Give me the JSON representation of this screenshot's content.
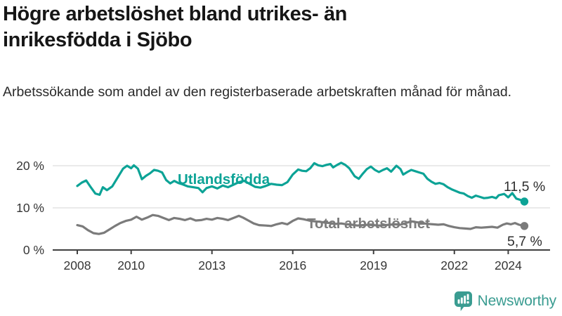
{
  "header": {
    "title": "Högre arbetslöshet bland utrikes- än inrikesfödda i Sjöbo",
    "subtitle": "Arbetssökande som andel av den registerbaserade arbetskraften månad för månad."
  },
  "chart_data": {
    "type": "line",
    "title": "",
    "xlabel": "",
    "ylabel": "",
    "ylim": [
      0,
      22
    ],
    "xlim": [
      2007.1,
      2025.55
    ],
    "grid": "horizontal-light",
    "legend_position": "inline-labels-on-lines",
    "axis_color": "#3f3f3f",
    "gridline_color": "#e3e3e3",
    "tick_label_color": "#363636",
    "value_label_color": "#2e2e2e",
    "y_ticks": [
      {
        "value": 0,
        "label": "0 %"
      },
      {
        "value": 10,
        "label": "10 %"
      },
      {
        "value": 20,
        "label": "20 %"
      }
    ],
    "x_ticks": [
      {
        "value": 2008,
        "label": "2008"
      },
      {
        "value": 2010,
        "label": "2010"
      },
      {
        "value": 2013,
        "label": "2013"
      },
      {
        "value": 2016,
        "label": "2016"
      },
      {
        "value": 2019,
        "label": "2019"
      },
      {
        "value": 2022,
        "label": "2022"
      },
      {
        "value": 2024,
        "label": "2024"
      }
    ],
    "series": [
      {
        "name": "Utlandsfödda",
        "color": "#0ca396",
        "end_value": 11.5,
        "end_label": "11,5 %",
        "points": [
          [
            2008.0,
            15.2
          ],
          [
            2008.17,
            16.0
          ],
          [
            2008.33,
            16.5
          ],
          [
            2008.5,
            14.9
          ],
          [
            2008.67,
            13.4
          ],
          [
            2008.83,
            13.1
          ],
          [
            2008.95,
            14.9
          ],
          [
            2009.1,
            14.2
          ],
          [
            2009.3,
            15.1
          ],
          [
            2009.5,
            17.2
          ],
          [
            2009.7,
            19.3
          ],
          [
            2009.85,
            20.0
          ],
          [
            2010.0,
            19.4
          ],
          [
            2010.1,
            20.1
          ],
          [
            2010.25,
            19.3
          ],
          [
            2010.4,
            16.8
          ],
          [
            2010.55,
            17.6
          ],
          [
            2010.7,
            18.2
          ],
          [
            2010.85,
            19.0
          ],
          [
            2011.0,
            18.8
          ],
          [
            2011.15,
            18.4
          ],
          [
            2011.3,
            16.6
          ],
          [
            2011.45,
            15.8
          ],
          [
            2011.6,
            16.4
          ],
          [
            2011.75,
            15.9
          ],
          [
            2011.9,
            15.6
          ],
          [
            2012.1,
            15.1
          ],
          [
            2012.3,
            14.9
          ],
          [
            2012.5,
            14.7
          ],
          [
            2012.65,
            13.7
          ],
          [
            2012.8,
            14.7
          ],
          [
            2013.0,
            15.1
          ],
          [
            2013.2,
            14.6
          ],
          [
            2013.4,
            15.3
          ],
          [
            2013.6,
            14.9
          ],
          [
            2013.8,
            15.5
          ],
          [
            2014.0,
            16.1
          ],
          [
            2014.2,
            16.4
          ],
          [
            2014.4,
            15.7
          ],
          [
            2014.6,
            15.0
          ],
          [
            2014.8,
            14.8
          ],
          [
            2015.0,
            15.2
          ],
          [
            2015.2,
            15.7
          ],
          [
            2015.4,
            15.5
          ],
          [
            2015.6,
            15.4
          ],
          [
            2015.8,
            16.1
          ],
          [
            2016.0,
            17.9
          ],
          [
            2016.2,
            19.1
          ],
          [
            2016.35,
            18.8
          ],
          [
            2016.5,
            18.7
          ],
          [
            2016.65,
            19.4
          ],
          [
            2016.8,
            20.6
          ],
          [
            2016.95,
            20.1
          ],
          [
            2017.1,
            19.9
          ],
          [
            2017.25,
            20.2
          ],
          [
            2017.4,
            20.4
          ],
          [
            2017.5,
            19.6
          ],
          [
            2017.65,
            20.2
          ],
          [
            2017.8,
            20.7
          ],
          [
            2017.95,
            20.2
          ],
          [
            2018.1,
            19.4
          ],
          [
            2018.3,
            17.5
          ],
          [
            2018.45,
            16.9
          ],
          [
            2018.6,
            18.1
          ],
          [
            2018.75,
            19.2
          ],
          [
            2018.9,
            19.8
          ],
          [
            2019.05,
            19.0
          ],
          [
            2019.2,
            18.5
          ],
          [
            2019.35,
            19.0
          ],
          [
            2019.5,
            19.4
          ],
          [
            2019.65,
            18.6
          ],
          [
            2019.85,
            20.0
          ],
          [
            2020.0,
            19.2
          ],
          [
            2020.1,
            17.9
          ],
          [
            2020.25,
            18.5
          ],
          [
            2020.4,
            19.0
          ],
          [
            2020.55,
            18.7
          ],
          [
            2020.7,
            18.4
          ],
          [
            2020.85,
            18.1
          ],
          [
            2021.0,
            16.9
          ],
          [
            2021.15,
            16.2
          ],
          [
            2021.3,
            15.7
          ],
          [
            2021.45,
            15.9
          ],
          [
            2021.6,
            15.6
          ],
          [
            2021.75,
            14.9
          ],
          [
            2021.9,
            14.4
          ],
          [
            2022.05,
            14.0
          ],
          [
            2022.2,
            13.6
          ],
          [
            2022.35,
            13.4
          ],
          [
            2022.5,
            12.8
          ],
          [
            2022.65,
            12.4
          ],
          [
            2022.8,
            12.9
          ],
          [
            2022.95,
            12.6
          ],
          [
            2023.1,
            12.3
          ],
          [
            2023.25,
            12.4
          ],
          [
            2023.4,
            12.6
          ],
          [
            2023.55,
            12.3
          ],
          [
            2023.65,
            13.0
          ],
          [
            2023.85,
            13.3
          ],
          [
            2024.0,
            12.5
          ],
          [
            2024.15,
            13.5
          ],
          [
            2024.3,
            12.2
          ],
          [
            2024.45,
            11.9
          ],
          [
            2024.6,
            11.5
          ]
        ]
      },
      {
        "name": "Total arbetslöshet",
        "color": "#7b7b7b",
        "end_value": 5.7,
        "end_label": "5,7 %",
        "points": [
          [
            2008.0,
            5.9
          ],
          [
            2008.2,
            5.6
          ],
          [
            2008.4,
            4.7
          ],
          [
            2008.6,
            4.0
          ],
          [
            2008.8,
            3.8
          ],
          [
            2009.0,
            4.1
          ],
          [
            2009.2,
            4.9
          ],
          [
            2009.4,
            5.7
          ],
          [
            2009.6,
            6.4
          ],
          [
            2009.8,
            6.9
          ],
          [
            2010.0,
            7.2
          ],
          [
            2010.2,
            7.9
          ],
          [
            2010.4,
            7.2
          ],
          [
            2010.6,
            7.7
          ],
          [
            2010.8,
            8.3
          ],
          [
            2011.0,
            8.1
          ],
          [
            2011.2,
            7.6
          ],
          [
            2011.4,
            7.1
          ],
          [
            2011.6,
            7.6
          ],
          [
            2011.8,
            7.4
          ],
          [
            2012.0,
            7.1
          ],
          [
            2012.2,
            7.5
          ],
          [
            2012.4,
            7.0
          ],
          [
            2012.6,
            7.1
          ],
          [
            2012.8,
            7.4
          ],
          [
            2013.0,
            7.2
          ],
          [
            2013.2,
            7.6
          ],
          [
            2013.4,
            7.4
          ],
          [
            2013.6,
            7.1
          ],
          [
            2013.8,
            7.6
          ],
          [
            2014.0,
            8.1
          ],
          [
            2014.15,
            7.7
          ],
          [
            2014.35,
            7.0
          ],
          [
            2014.55,
            6.3
          ],
          [
            2014.75,
            5.9
          ],
          [
            2015.0,
            5.8
          ],
          [
            2015.2,
            5.7
          ],
          [
            2015.4,
            6.1
          ],
          [
            2015.6,
            6.4
          ],
          [
            2015.8,
            6.1
          ],
          [
            2016.0,
            6.9
          ],
          [
            2016.2,
            7.5
          ],
          [
            2016.4,
            7.3
          ],
          [
            2016.6,
            7.0
          ],
          [
            2016.8,
            6.8
          ],
          [
            2017.0,
            6.7
          ],
          [
            2017.2,
            6.5
          ],
          [
            2017.4,
            6.4
          ],
          [
            2017.6,
            6.2
          ],
          [
            2017.8,
            6.3
          ],
          [
            2018.0,
            6.1
          ],
          [
            2018.2,
            6.0
          ],
          [
            2018.4,
            5.8
          ],
          [
            2018.6,
            5.9
          ],
          [
            2018.8,
            6.0
          ],
          [
            2019.0,
            5.9
          ],
          [
            2019.2,
            5.8
          ],
          [
            2019.4,
            5.9
          ],
          [
            2019.6,
            6.0
          ],
          [
            2019.8,
            6.1
          ],
          [
            2020.0,
            6.0
          ],
          [
            2020.2,
            6.4
          ],
          [
            2020.4,
            6.8
          ],
          [
            2020.6,
            6.6
          ],
          [
            2020.8,
            6.4
          ],
          [
            2021.0,
            6.2
          ],
          [
            2021.2,
            6.1
          ],
          [
            2021.4,
            6.0
          ],
          [
            2021.6,
            6.1
          ],
          [
            2021.8,
            5.7
          ],
          [
            2022.0,
            5.4
          ],
          [
            2022.2,
            5.2
          ],
          [
            2022.4,
            5.1
          ],
          [
            2022.6,
            5.0
          ],
          [
            2022.8,
            5.4
          ],
          [
            2023.0,
            5.3
          ],
          [
            2023.2,
            5.4
          ],
          [
            2023.4,
            5.5
          ],
          [
            2023.6,
            5.3
          ],
          [
            2023.8,
            6.0
          ],
          [
            2023.95,
            6.3
          ],
          [
            2024.1,
            6.1
          ],
          [
            2024.25,
            6.4
          ],
          [
            2024.4,
            6.0
          ],
          [
            2024.6,
            5.7
          ]
        ]
      }
    ]
  },
  "branding": {
    "logo_text": "Newsworthy",
    "logo_color": "#3a9c91",
    "logo_icon": "bar-chart-speech-bubble-icon"
  }
}
